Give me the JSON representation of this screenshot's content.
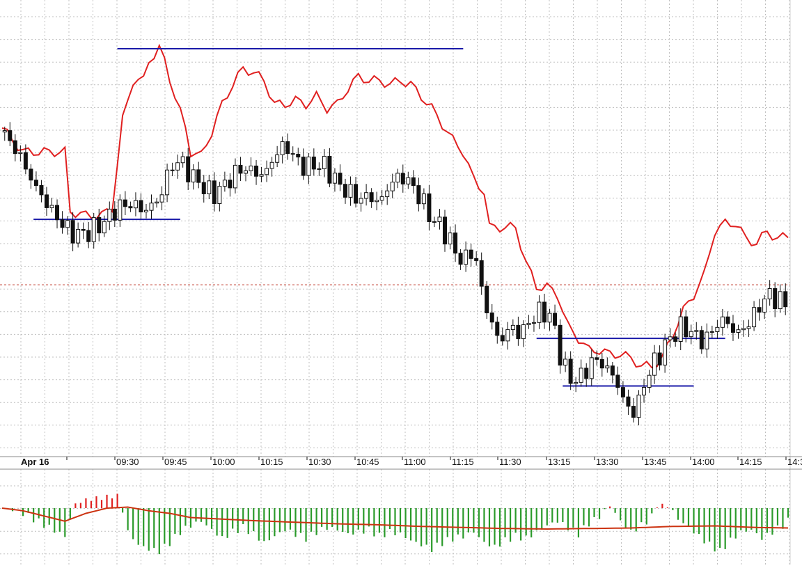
{
  "chart_data": {
    "type": "candlestick",
    "title": "",
    "date_label": "Apr 16",
    "x_ticks": [
      "09:30",
      "09:45",
      "10:00",
      "10:15",
      "10:30",
      "10:45",
      "11:00",
      "11:15",
      "11:30",
      "13:15",
      "13:30",
      "13:45",
      "14:00",
      "14:15",
      "14:3"
    ],
    "grid": true,
    "y_range": [
      0,
      1
    ],
    "reference_level": 0.405,
    "price_path": [
      [
        0,
        0.79
      ],
      [
        3,
        0.74
      ],
      [
        6,
        0.66
      ],
      [
        9,
        0.6
      ],
      [
        12,
        0.55
      ],
      [
        14,
        0.53
      ],
      [
        17,
        0.54
      ],
      [
        20,
        0.57
      ],
      [
        22,
        0.6
      ],
      [
        25,
        0.61
      ],
      [
        27,
        0.59
      ],
      [
        30,
        0.62
      ],
      [
        32,
        0.7
      ],
      [
        34,
        0.72
      ],
      [
        36,
        0.68
      ],
      [
        38,
        0.66
      ],
      [
        40,
        0.63
      ],
      [
        42,
        0.65
      ],
      [
        44,
        0.68
      ],
      [
        46,
        0.7
      ],
      [
        48,
        0.69
      ],
      [
        50,
        0.68
      ],
      [
        52,
        0.73
      ],
      [
        54,
        0.76
      ],
      [
        56,
        0.72
      ],
      [
        58,
        0.7
      ],
      [
        60,
        0.71
      ],
      [
        62,
        0.7
      ],
      [
        64,
        0.66
      ],
      [
        66,
        0.64
      ],
      [
        68,
        0.62
      ],
      [
        70,
        0.63
      ],
      [
        72,
        0.61
      ],
      [
        74,
        0.66
      ],
      [
        76,
        0.68
      ],
      [
        78,
        0.66
      ],
      [
        80,
        0.62
      ],
      [
        82,
        0.57
      ],
      [
        84,
        0.55
      ],
      [
        86,
        0.5
      ],
      [
        88,
        0.46
      ],
      [
        90,
        0.5
      ],
      [
        91,
        0.42
      ],
      [
        93,
        0.32
      ],
      [
        95,
        0.26
      ],
      [
        97,
        0.3
      ],
      [
        99,
        0.28
      ],
      [
        101,
        0.32
      ],
      [
        103,
        0.34
      ],
      [
        105,
        0.32
      ],
      [
        107,
        0.2
      ],
      [
        109,
        0.16
      ],
      [
        111,
        0.18
      ],
      [
        113,
        0.22
      ],
      [
        115,
        0.2
      ],
      [
        117,
        0.17
      ],
      [
        119,
        0.1
      ],
      [
        121,
        0.08
      ],
      [
        122,
        0.14
      ],
      [
        124,
        0.2
      ],
      [
        126,
        0.24
      ],
      [
        128,
        0.28
      ],
      [
        130,
        0.3
      ],
      [
        132,
        0.28
      ],
      [
        134,
        0.26
      ],
      [
        136,
        0.3
      ],
      [
        138,
        0.32
      ],
      [
        140,
        0.28
      ],
      [
        142,
        0.3
      ],
      [
        144,
        0.34
      ],
      [
        146,
        0.38
      ],
      [
        148,
        0.37
      ],
      [
        150,
        0.35
      ]
    ],
    "indicator_line": [
      [
        0,
        0.8
      ],
      [
        4,
        0.74
      ],
      [
        8,
        0.74
      ],
      [
        12,
        0.74
      ],
      [
        13,
        0.59
      ],
      [
        16,
        0.58
      ],
      [
        19,
        0.58
      ],
      [
        21,
        0.6
      ],
      [
        23,
        0.82
      ],
      [
        25,
        0.92
      ],
      [
        27,
        0.92
      ],
      [
        28,
        0.97
      ],
      [
        30,
        1.0
      ],
      [
        31,
        0.97
      ],
      [
        33,
        0.88
      ],
      [
        35,
        0.8
      ],
      [
        36,
        0.74
      ],
      [
        38,
        0.73
      ],
      [
        40,
        0.79
      ],
      [
        42,
        0.86
      ],
      [
        44,
        0.91
      ],
      [
        46,
        0.95
      ],
      [
        48,
        0.94
      ],
      [
        50,
        0.92
      ],
      [
        52,
        0.86
      ],
      [
        54,
        0.86
      ],
      [
        56,
        0.87
      ],
      [
        58,
        0.86
      ],
      [
        60,
        0.88
      ],
      [
        62,
        0.85
      ],
      [
        64,
        0.86
      ],
      [
        66,
        0.9
      ],
      [
        68,
        0.93
      ],
      [
        70,
        0.92
      ],
      [
        72,
        0.92
      ],
      [
        74,
        0.91
      ],
      [
        76,
        0.92
      ],
      [
        78,
        0.91
      ],
      [
        80,
        0.88
      ],
      [
        82,
        0.85
      ],
      [
        84,
        0.81
      ],
      [
        86,
        0.77
      ],
      [
        88,
        0.74
      ],
      [
        90,
        0.67
      ],
      [
        92,
        0.64
      ],
      [
        93,
        0.55
      ],
      [
        95,
        0.55
      ],
      [
        98,
        0.55
      ],
      [
        100,
        0.46
      ],
      [
        102,
        0.4
      ],
      [
        104,
        0.4
      ],
      [
        106,
        0.38
      ],
      [
        108,
        0.3
      ],
      [
        110,
        0.27
      ],
      [
        112,
        0.24
      ],
      [
        114,
        0.24
      ],
      [
        116,
        0.23
      ],
      [
        118,
        0.23
      ],
      [
        120,
        0.22
      ],
      [
        122,
        0.2
      ],
      [
        124,
        0.2
      ],
      [
        126,
        0.22
      ],
      [
        128,
        0.28
      ],
      [
        130,
        0.34
      ],
      [
        132,
        0.38
      ],
      [
        134,
        0.43
      ],
      [
        136,
        0.54
      ],
      [
        138,
        0.56
      ],
      [
        140,
        0.56
      ],
      [
        142,
        0.52
      ],
      [
        144,
        0.51
      ],
      [
        146,
        0.54
      ],
      [
        148,
        0.52
      ],
      [
        150,
        0.53
      ]
    ],
    "level_lines": [
      {
        "start": 22,
        "end": 88,
        "level": 1.0
      },
      {
        "start": 6,
        "end": 34,
        "level": 0.57
      },
      {
        "start": 102,
        "end": 138,
        "level": 0.27
      },
      {
        "start": 107,
        "end": 132,
        "level": 0.15
      }
    ],
    "histogram": {
      "y_range": [
        -1,
        0.5
      ],
      "path": [
        [
          0,
          0.0
        ],
        [
          3,
          -0.05
        ],
        [
          6,
          -0.25
        ],
        [
          9,
          -0.45
        ],
        [
          12,
          -0.65
        ],
        [
          14,
          0.15
        ],
        [
          16,
          0.3
        ],
        [
          18,
          0.35
        ],
        [
          20,
          0.4
        ],
        [
          22,
          0.45
        ],
        [
          24,
          -0.55
        ],
        [
          26,
          -0.85
        ],
        [
          28,
          -0.95
        ],
        [
          30,
          -1.0
        ],
        [
          32,
          -0.8
        ],
        [
          34,
          -0.55
        ],
        [
          36,
          -0.4
        ],
        [
          38,
          -0.3
        ],
        [
          40,
          -0.5
        ],
        [
          42,
          -0.7
        ],
        [
          44,
          -0.55
        ],
        [
          46,
          -0.45
        ],
        [
          48,
          -0.6
        ],
        [
          50,
          -0.8
        ],
        [
          52,
          -0.65
        ],
        [
          54,
          -0.5
        ],
        [
          56,
          -0.6
        ],
        [
          58,
          -0.7
        ],
        [
          60,
          -0.55
        ],
        [
          62,
          -0.45
        ],
        [
          64,
          -0.5
        ],
        [
          66,
          -0.6
        ],
        [
          68,
          -0.55
        ],
        [
          70,
          -0.5
        ],
        [
          72,
          -0.65
        ],
        [
          74,
          -0.55
        ],
        [
          76,
          -0.6
        ],
        [
          78,
          -0.75
        ],
        [
          80,
          -0.85
        ],
        [
          82,
          -0.95
        ],
        [
          84,
          -0.8
        ],
        [
          86,
          -0.7
        ],
        [
          88,
          -0.65
        ],
        [
          90,
          -0.55
        ],
        [
          92,
          -0.8
        ],
        [
          94,
          -0.9
        ],
        [
          96,
          -0.75
        ],
        [
          98,
          -0.65
        ],
        [
          100,
          -0.7
        ],
        [
          102,
          -0.55
        ],
        [
          104,
          -0.4
        ],
        [
          106,
          -0.3
        ],
        [
          108,
          -0.45
        ],
        [
          110,
          -0.6
        ],
        [
          112,
          -0.35
        ],
        [
          114,
          -0.2
        ],
        [
          116,
          0.08
        ],
        [
          118,
          -0.3
        ],
        [
          120,
          -0.55
        ],
        [
          122,
          -0.4
        ],
        [
          124,
          -0.2
        ],
        [
          125,
          0.1
        ],
        [
          127,
          0.08
        ],
        [
          129,
          -0.25
        ],
        [
          131,
          -0.45
        ],
        [
          133,
          -0.65
        ],
        [
          135,
          -0.85
        ],
        [
          137,
          -1.0
        ],
        [
          139,
          -0.75
        ],
        [
          141,
          -0.55
        ],
        [
          143,
          -0.5
        ],
        [
          145,
          -0.7
        ],
        [
          147,
          -0.55
        ],
        [
          149,
          -0.4
        ],
        [
          150,
          -0.3
        ]
      ],
      "signal_line": [
        [
          0,
          0.0
        ],
        [
          4,
          -0.05
        ],
        [
          8,
          -0.15
        ],
        [
          12,
          -0.25
        ],
        [
          16,
          -0.1
        ],
        [
          20,
          0.0
        ],
        [
          24,
          0.02
        ],
        [
          28,
          -0.05
        ],
        [
          32,
          -0.1
        ],
        [
          36,
          -0.18
        ],
        [
          40,
          -0.2
        ],
        [
          48,
          -0.24
        ],
        [
          56,
          -0.27
        ],
        [
          64,
          -0.3
        ],
        [
          72,
          -0.32
        ],
        [
          80,
          -0.35
        ],
        [
          88,
          -0.37
        ],
        [
          96,
          -0.39
        ],
        [
          104,
          -0.4
        ],
        [
          112,
          -0.39
        ],
        [
          120,
          -0.38
        ],
        [
          128,
          -0.35
        ],
        [
          136,
          -0.34
        ],
        [
          144,
          -0.37
        ],
        [
          150,
          -0.38
        ]
      ]
    },
    "colors": {
      "bull": "#ffffff",
      "bear": "#111111",
      "wick": "#111111",
      "indicator": "#e02020",
      "level": "#1a1aa8",
      "reference": "#c0392b",
      "hist_pos": "#e02020",
      "hist_neg": "#2a9a2a",
      "signal": "#cc3311",
      "grid": "#bfbfbf"
    }
  }
}
